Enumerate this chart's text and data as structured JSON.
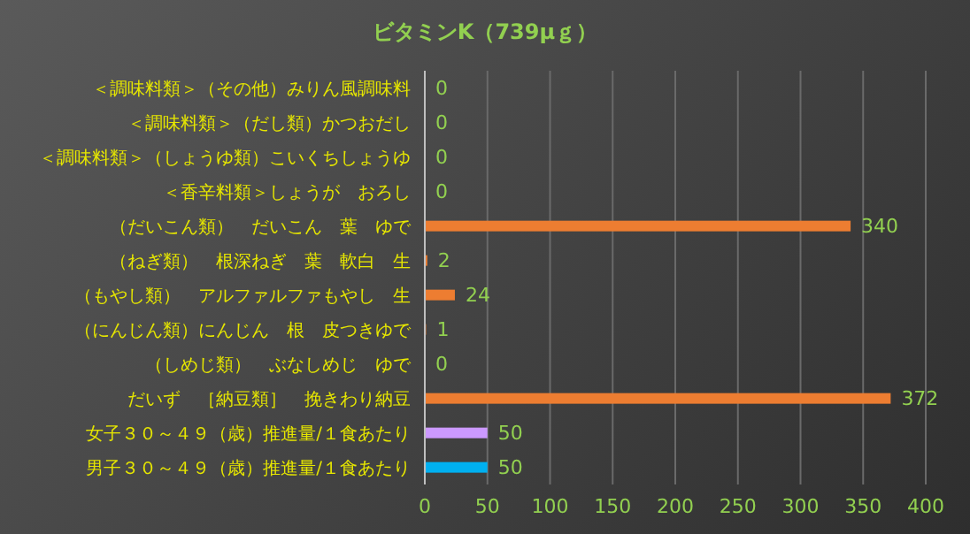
{
  "chart_data": {
    "type": "bar",
    "orientation": "horizontal",
    "title": "ビタミンK（739μｇ）",
    "categories": [
      "＜調味料類＞（その他）みりん風調味料",
      "＜調味料類＞（だし類）かつおだし",
      "＜調味料類＞（しょうゆ類）こいくちしょうゆ",
      "＜香辛料類＞しょうが　おろし",
      "（だいこん類）　だいこん　葉　ゆで",
      "（ねぎ類）　根深ねぎ　葉　軟白　生",
      "（もやし類）　アルファルファもやし　生",
      "（にんじん類）にんじん　根　皮つきゆで",
      "（しめじ類）　ぶなしめじ　ゆで",
      "だいず　［納豆類］　挽きわり納豆",
      "女子３０～４９（歳）推進量/１食あたり",
      "男子３０～４９（歳）推進量/１食あたり"
    ],
    "values": [
      0,
      0,
      0,
      0,
      340,
      2,
      24,
      1,
      0,
      372,
      50,
      50
    ],
    "colors": [
      "#ed7d31",
      "#ed7d31",
      "#ed7d31",
      "#ed7d31",
      "#ed7d31",
      "#ed7d31",
      "#ed7d31",
      "#ed7d31",
      "#ed7d31",
      "#ed7d31",
      "#cc99ff",
      "#00b0f0"
    ],
    "xlim": [
      0,
      400
    ],
    "xticks": [
      0,
      50,
      100,
      150,
      200,
      250,
      300,
      350,
      400
    ],
    "grid": "x",
    "data_labels": true
  }
}
